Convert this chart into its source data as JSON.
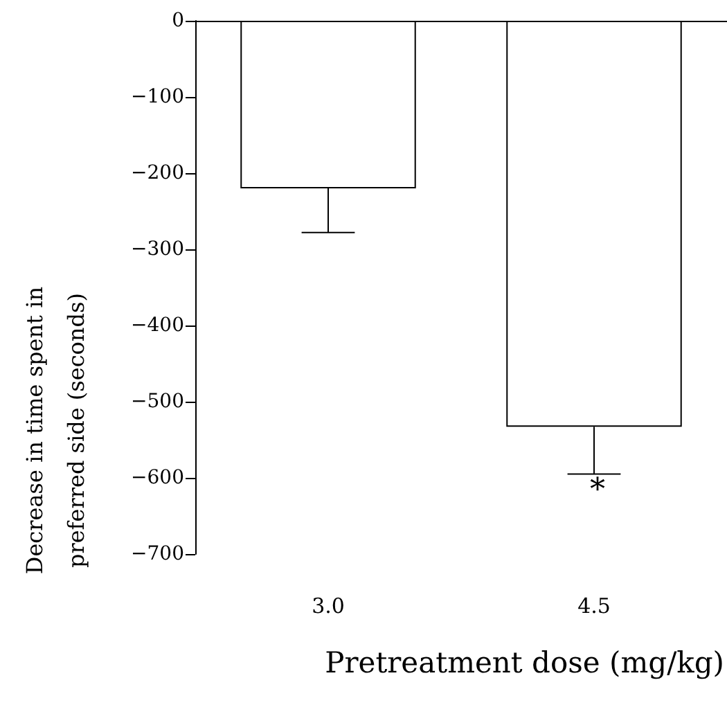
{
  "chart_data": {
    "type": "bar",
    "xlabel": "Pretreatment dose (mg/kg)",
    "ylabel": "Decrease in time spent in\npreferred side (seconds)",
    "categories": [
      "3.0",
      "4.5"
    ],
    "values": [
      -220,
      -533
    ],
    "errors": [
      [
        -278,
        -220
      ],
      [
        -595,
        -533
      ]
    ],
    "color": "#ffffff",
    "ylim": [
      -700,
      0
    ],
    "yticks": [
      -700,
      -600,
      -500,
      -400,
      -300,
      -200,
      -100,
      0
    ],
    "annotations": [
      "*"
    ],
    "grid": false
  }
}
